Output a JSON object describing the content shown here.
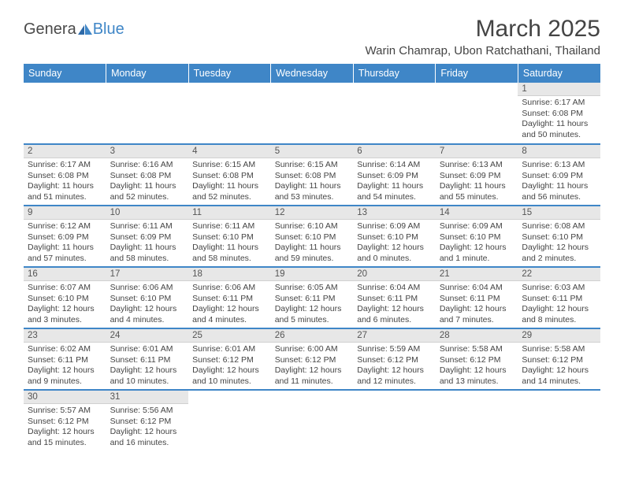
{
  "brand": {
    "gen": "Genera",
    "blue": "Blue"
  },
  "title": "March 2025",
  "location": "Warin Chamrap, Ubon Ratchathani, Thailand",
  "weekdays": [
    "Sunday",
    "Monday",
    "Tuesday",
    "Wednesday",
    "Thursday",
    "Friday",
    "Saturday"
  ],
  "colors": {
    "header_bg": "#3f86c7",
    "header_fg": "#ffffff",
    "daynum_bg": "#e7e7e7",
    "text": "#444444"
  },
  "grid": {
    "leading_blanks": 6,
    "trailing_blanks": 5
  },
  "days": [
    {
      "n": "1",
      "sr": "Sunrise: 6:17 AM",
      "ss": "Sunset: 6:08 PM",
      "dl": "Daylight: 11 hours and 50 minutes."
    },
    {
      "n": "2",
      "sr": "Sunrise: 6:17 AM",
      "ss": "Sunset: 6:08 PM",
      "dl": "Daylight: 11 hours and 51 minutes."
    },
    {
      "n": "3",
      "sr": "Sunrise: 6:16 AM",
      "ss": "Sunset: 6:08 PM",
      "dl": "Daylight: 11 hours and 52 minutes."
    },
    {
      "n": "4",
      "sr": "Sunrise: 6:15 AM",
      "ss": "Sunset: 6:08 PM",
      "dl": "Daylight: 11 hours and 52 minutes."
    },
    {
      "n": "5",
      "sr": "Sunrise: 6:15 AM",
      "ss": "Sunset: 6:08 PM",
      "dl": "Daylight: 11 hours and 53 minutes."
    },
    {
      "n": "6",
      "sr": "Sunrise: 6:14 AM",
      "ss": "Sunset: 6:09 PM",
      "dl": "Daylight: 11 hours and 54 minutes."
    },
    {
      "n": "7",
      "sr": "Sunrise: 6:13 AM",
      "ss": "Sunset: 6:09 PM",
      "dl": "Daylight: 11 hours and 55 minutes."
    },
    {
      "n": "8",
      "sr": "Sunrise: 6:13 AM",
      "ss": "Sunset: 6:09 PM",
      "dl": "Daylight: 11 hours and 56 minutes."
    },
    {
      "n": "9",
      "sr": "Sunrise: 6:12 AM",
      "ss": "Sunset: 6:09 PM",
      "dl": "Daylight: 11 hours and 57 minutes."
    },
    {
      "n": "10",
      "sr": "Sunrise: 6:11 AM",
      "ss": "Sunset: 6:09 PM",
      "dl": "Daylight: 11 hours and 58 minutes."
    },
    {
      "n": "11",
      "sr": "Sunrise: 6:11 AM",
      "ss": "Sunset: 6:10 PM",
      "dl": "Daylight: 11 hours and 58 minutes."
    },
    {
      "n": "12",
      "sr": "Sunrise: 6:10 AM",
      "ss": "Sunset: 6:10 PM",
      "dl": "Daylight: 11 hours and 59 minutes."
    },
    {
      "n": "13",
      "sr": "Sunrise: 6:09 AM",
      "ss": "Sunset: 6:10 PM",
      "dl": "Daylight: 12 hours and 0 minutes."
    },
    {
      "n": "14",
      "sr": "Sunrise: 6:09 AM",
      "ss": "Sunset: 6:10 PM",
      "dl": "Daylight: 12 hours and 1 minute."
    },
    {
      "n": "15",
      "sr": "Sunrise: 6:08 AM",
      "ss": "Sunset: 6:10 PM",
      "dl": "Daylight: 12 hours and 2 minutes."
    },
    {
      "n": "16",
      "sr": "Sunrise: 6:07 AM",
      "ss": "Sunset: 6:10 PM",
      "dl": "Daylight: 12 hours and 3 minutes."
    },
    {
      "n": "17",
      "sr": "Sunrise: 6:06 AM",
      "ss": "Sunset: 6:10 PM",
      "dl": "Daylight: 12 hours and 4 minutes."
    },
    {
      "n": "18",
      "sr": "Sunrise: 6:06 AM",
      "ss": "Sunset: 6:11 PM",
      "dl": "Daylight: 12 hours and 4 minutes."
    },
    {
      "n": "19",
      "sr": "Sunrise: 6:05 AM",
      "ss": "Sunset: 6:11 PM",
      "dl": "Daylight: 12 hours and 5 minutes."
    },
    {
      "n": "20",
      "sr": "Sunrise: 6:04 AM",
      "ss": "Sunset: 6:11 PM",
      "dl": "Daylight: 12 hours and 6 minutes."
    },
    {
      "n": "21",
      "sr": "Sunrise: 6:04 AM",
      "ss": "Sunset: 6:11 PM",
      "dl": "Daylight: 12 hours and 7 minutes."
    },
    {
      "n": "22",
      "sr": "Sunrise: 6:03 AM",
      "ss": "Sunset: 6:11 PM",
      "dl": "Daylight: 12 hours and 8 minutes."
    },
    {
      "n": "23",
      "sr": "Sunrise: 6:02 AM",
      "ss": "Sunset: 6:11 PM",
      "dl": "Daylight: 12 hours and 9 minutes."
    },
    {
      "n": "24",
      "sr": "Sunrise: 6:01 AM",
      "ss": "Sunset: 6:11 PM",
      "dl": "Daylight: 12 hours and 10 minutes."
    },
    {
      "n": "25",
      "sr": "Sunrise: 6:01 AM",
      "ss": "Sunset: 6:12 PM",
      "dl": "Daylight: 12 hours and 10 minutes."
    },
    {
      "n": "26",
      "sr": "Sunrise: 6:00 AM",
      "ss": "Sunset: 6:12 PM",
      "dl": "Daylight: 12 hours and 11 minutes."
    },
    {
      "n": "27",
      "sr": "Sunrise: 5:59 AM",
      "ss": "Sunset: 6:12 PM",
      "dl": "Daylight: 12 hours and 12 minutes."
    },
    {
      "n": "28",
      "sr": "Sunrise: 5:58 AM",
      "ss": "Sunset: 6:12 PM",
      "dl": "Daylight: 12 hours and 13 minutes."
    },
    {
      "n": "29",
      "sr": "Sunrise: 5:58 AM",
      "ss": "Sunset: 6:12 PM",
      "dl": "Daylight: 12 hours and 14 minutes."
    },
    {
      "n": "30",
      "sr": "Sunrise: 5:57 AM",
      "ss": "Sunset: 6:12 PM",
      "dl": "Daylight: 12 hours and 15 minutes."
    },
    {
      "n": "31",
      "sr": "Sunrise: 5:56 AM",
      "ss": "Sunset: 6:12 PM",
      "dl": "Daylight: 12 hours and 16 minutes."
    }
  ]
}
